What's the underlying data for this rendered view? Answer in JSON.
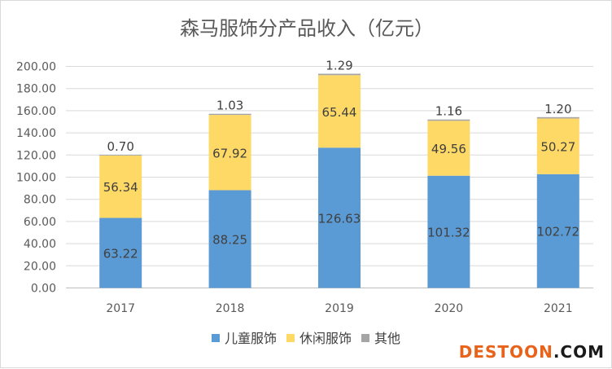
{
  "chart_data": {
    "type": "bar",
    "stacked": true,
    "title": "森马服饰分产品收入（亿元）",
    "categories": [
      "2017",
      "2018",
      "2019",
      "2020",
      "2021"
    ],
    "series": [
      {
        "name": "儿童服饰",
        "values": [
          63.22,
          88.25,
          126.63,
          101.32,
          102.72
        ],
        "color": "#5b9bd5"
      },
      {
        "name": "休闲服饰",
        "values": [
          56.34,
          67.92,
          65.44,
          49.56,
          50.27
        ],
        "color": "#ffd966"
      },
      {
        "name": "其他",
        "values": [
          0.7,
          1.03,
          1.29,
          1.16,
          1.2
        ],
        "color": "#a5a5a5"
      }
    ],
    "value_labels": [
      [
        "63.22",
        "88.25",
        "126.63",
        "101.32",
        "102.72"
      ],
      [
        "56.34",
        "67.92",
        "65.44",
        "49.56",
        "50.27"
      ],
      [
        "0.70",
        "1.03",
        "1.29",
        "1.16",
        "1.20"
      ]
    ],
    "ylim": [
      0,
      200
    ],
    "yticks": [
      "0.00",
      "20.00",
      "40.00",
      "60.00",
      "80.00",
      "100.00",
      "120.00",
      "140.00",
      "160.00",
      "180.00",
      "200.00"
    ],
    "xlabel": "",
    "ylabel": "",
    "grid": true,
    "legend": "bottom"
  },
  "watermark": {
    "part1": "DESTOON",
    "part2": ".COM",
    "color1": "#e8621a",
    "color2": "#1a1a1a"
  }
}
